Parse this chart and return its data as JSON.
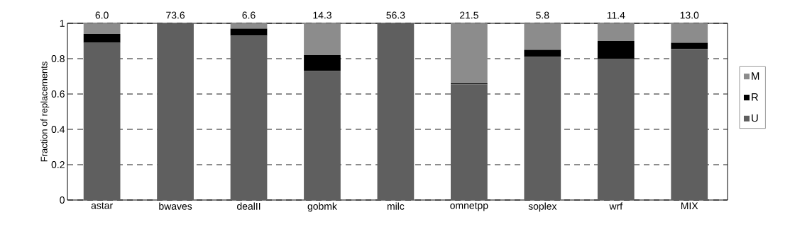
{
  "chart_data": {
    "type": "bar",
    "stacked": true,
    "ylabel": "Fraction of replacements",
    "categories": [
      "astar",
      "bwaves",
      "dealII",
      "gobmk",
      "milc",
      "omnetpp",
      "soplex",
      "wrf",
      "MIX"
    ],
    "series": [
      {
        "name": "U",
        "color": "#5f5f5f",
        "values": [
          0.89,
          1.0,
          0.93,
          0.73,
          1.0,
          0.655,
          0.81,
          0.8,
          0.855
        ]
      },
      {
        "name": "R",
        "color": "#000000",
        "values": [
          0.05,
          0,
          0.04,
          0.09,
          0,
          0.005,
          0.04,
          0.1,
          0.035
        ]
      },
      {
        "name": "M",
        "color": "#8c8c8c",
        "values": [
          0.06,
          0,
          0.03,
          0.18,
          0,
          0.34,
          0.15,
          0.1,
          0.11
        ]
      }
    ],
    "ylim": [
      0,
      1
    ],
    "yticks": [
      0,
      0.2,
      0.4,
      0.6,
      0.8,
      1
    ],
    "grid": "y",
    "legend": "right",
    "annotations": [
      {
        "text": "6.0",
        "x": "astar",
        "y": 1
      },
      {
        "text": "73.6",
        "x": "bwaves",
        "y": 1
      },
      {
        "text": "6.6",
        "x": "dealII",
        "y": 1
      },
      {
        "text": "14.3",
        "x": "gobmk",
        "y": 1
      },
      {
        "text": "56.3",
        "x": "milc",
        "y": 1
      },
      {
        "text": "21.5",
        "x": "omnetpp",
        "y": 1
      },
      {
        "text": "5.8",
        "x": "soplex",
        "y": 1
      },
      {
        "text": "11.4",
        "x": "wrf",
        "y": 1
      },
      {
        "text": "13.0",
        "x": "MIX",
        "y": 1
      }
    ]
  }
}
